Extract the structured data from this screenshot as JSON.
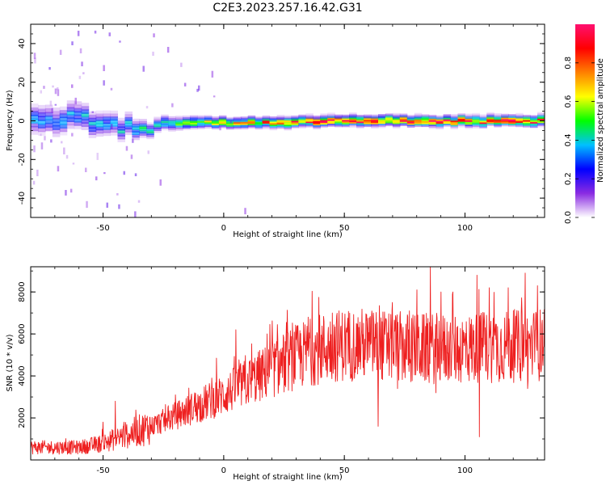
{
  "title": "C2E3.2023.257.16.42.G31",
  "chart_data": [
    {
      "type": "heatmap",
      "xlabel": "Height of straight line (km)",
      "ylabel": "Frequency (Hz)",
      "xlim": [
        -80,
        133
      ],
      "ylim": [
        -50,
        50
      ],
      "xticks": [
        -50,
        0,
        50,
        100
      ],
      "yticks": [
        -40,
        -20,
        0,
        20,
        40
      ],
      "colorbar": {
        "label": "Normalized spectral amplitude",
        "range": [
          0.0,
          1.0
        ],
        "ticks": [
          "0.0",
          "0.2",
          "0.4",
          "0.6",
          "0.8"
        ],
        "colormap": [
          "#ffffff",
          "#8a2be2",
          "#0000ff",
          "#00c0ff",
          "#00ff00",
          "#ffff00",
          "#ff8000",
          "#ff0000",
          "#ff1070"
        ]
      },
      "ridge": {
        "description_free": true,
        "center_freq_points": [
          [
            -80,
            0
          ],
          [
            -60,
            1
          ],
          [
            -45,
            -3
          ],
          [
            -35,
            -4
          ],
          [
            -25,
            -1
          ],
          [
            0,
            -1
          ],
          [
            50,
            0
          ],
          [
            133,
            0
          ]
        ],
        "half_width_points": [
          [
            -80,
            8
          ],
          [
            -40,
            6
          ],
          [
            -30,
            4
          ],
          [
            0,
            3
          ],
          [
            133,
            3
          ]
        ],
        "peak_amplitude_points": [
          [
            -80,
            0.35
          ],
          [
            -30,
            0.45
          ],
          [
            0,
            0.7
          ],
          [
            25,
            0.9
          ],
          [
            133,
            0.95
          ]
        ]
      }
    },
    {
      "type": "line",
      "xlabel": "Height of straight line (km)",
      "ylabel": "SNR (10 * v/v)",
      "xlim": [
        -80,
        133
      ],
      "ylim": [
        0,
        9200
      ],
      "xticks": [
        -50,
        0,
        50,
        100
      ],
      "yticks": [
        2000,
        4000,
        6000,
        8000
      ],
      "color": "#ee2020",
      "trend": [
        [
          -80,
          600
        ],
        [
          -60,
          600
        ],
        [
          -50,
          800
        ],
        [
          -40,
          1200
        ],
        [
          -30,
          1600
        ],
        [
          -20,
          2100
        ],
        [
          -10,
          2600
        ],
        [
          0,
          3100
        ],
        [
          10,
          3700
        ],
        [
          20,
          4300
        ],
        [
          30,
          4900
        ],
        [
          40,
          5300
        ],
        [
          50,
          5500
        ],
        [
          60,
          5500
        ],
        [
          70,
          5400
        ],
        [
          80,
          5300
        ],
        [
          90,
          5300
        ],
        [
          100,
          5300
        ],
        [
          110,
          5400
        ],
        [
          120,
          5400
        ],
        [
          133,
          5500
        ]
      ],
      "peaks": [
        [
          -50,
          1800
        ],
        [
          -45,
          2800
        ],
        [
          -20,
          3100
        ],
        [
          -12,
          3200
        ],
        [
          -5,
          3900
        ],
        [
          5,
          6200
        ],
        [
          10,
          4100
        ],
        [
          18,
          6000
        ],
        [
          35,
          6800
        ],
        [
          45,
          7000
        ],
        [
          55,
          6500
        ],
        [
          62,
          7000
        ],
        [
          64,
          9000
        ],
        [
          70,
          7500
        ],
        [
          80,
          8100
        ],
        [
          90,
          8000
        ],
        [
          95,
          8000
        ],
        [
          105,
          8800
        ],
        [
          110,
          8200
        ],
        [
          118,
          8200
        ],
        [
          125,
          8900
        ],
        [
          130,
          8300
        ]
      ],
      "dips": [
        [
          64,
          1600
        ],
        [
          72,
          3400
        ],
        [
          88,
          3200
        ],
        [
          106,
          1100
        ],
        [
          126,
          3400
        ]
      ]
    }
  ]
}
